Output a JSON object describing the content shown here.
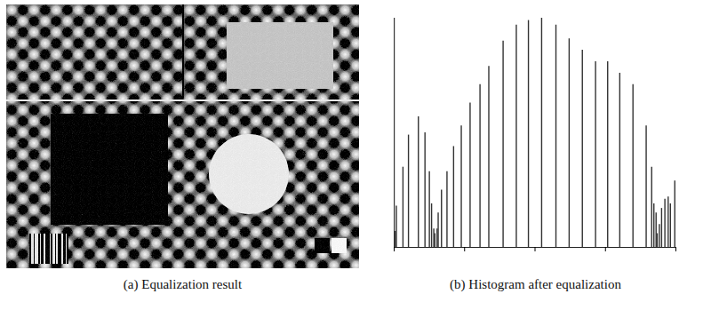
{
  "image": {
    "caption": "(a) Equalization result"
  },
  "chart_data": {
    "type": "bar",
    "title": "(b) Histogram after equalization",
    "x": [
      0,
      1,
      2,
      8,
      13,
      22,
      28,
      32,
      34,
      36,
      37,
      39,
      40,
      43,
      48,
      54,
      61,
      69,
      78,
      86,
      99,
      111,
      122,
      134,
      147,
      159,
      171,
      183,
      194,
      205,
      217,
      229,
      234,
      236,
      238,
      239,
      241,
      243,
      246,
      249,
      251,
      255
    ],
    "values": [
      100,
      7,
      18,
      35,
      49,
      57,
      50,
      33,
      19,
      8,
      6,
      8,
      15,
      25,
      33,
      44,
      53,
      63,
      71,
      79,
      90,
      97,
      99,
      100,
      97,
      91,
      86,
      81,
      81,
      76,
      71,
      53,
      35,
      19,
      15,
      6,
      10,
      17,
      21,
      22,
      19,
      29
    ],
    "color": "#333333",
    "xlim": [
      0,
      256
    ],
    "xticks": [
      0,
      64,
      128,
      192,
      256
    ],
    "ylim": [
      0,
      100
    ],
    "grid": false,
    "tick_labels": false
  }
}
